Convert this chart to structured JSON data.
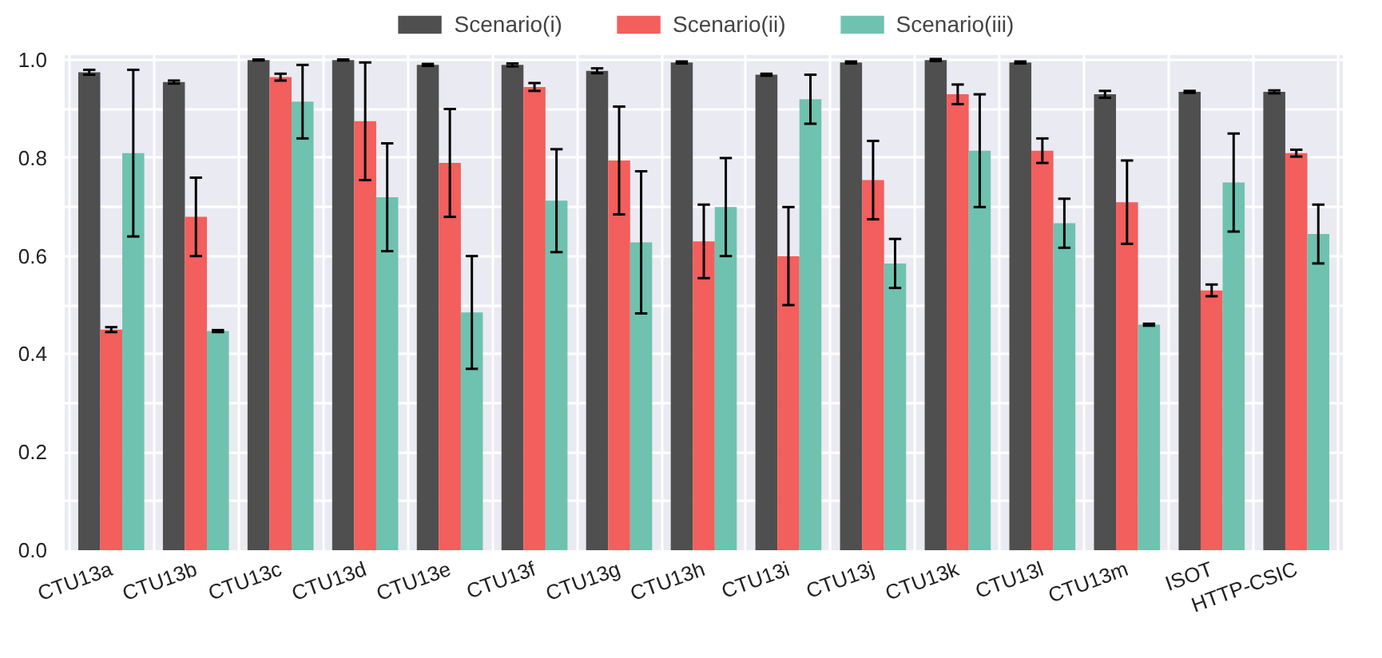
{
  "chart_data": {
    "type": "bar",
    "categories": [
      "CTU13a",
      "CTU13b",
      "CTU13c",
      "CTU13d",
      "CTU13e",
      "CTU13f",
      "CTU13g",
      "CTU13h",
      "CTU13i",
      "CTU13j",
      "CTU13k",
      "CTU13l",
      "CTU13m",
      "ISOT",
      "HTTP-CSIC"
    ],
    "series": [
      {
        "name": "Scenario(i)",
        "color": "#4f4f4f",
        "values": [
          0.975,
          0.955,
          1.0,
          1.0,
          0.99,
          0.99,
          0.978,
          0.995,
          0.97,
          0.995,
          1.0,
          0.995,
          0.93,
          0.935,
          0.935
        ],
        "errors": [
          0.005,
          0.003,
          0.001,
          0.001,
          0.002,
          0.003,
          0.005,
          0.002,
          0.002,
          0.002,
          0.002,
          0.002,
          0.007,
          0.002,
          0.003
        ]
      },
      {
        "name": "Scenario(ii)",
        "color": "#f25f5c",
        "values": [
          0.45,
          0.68,
          0.965,
          0.875,
          0.79,
          0.945,
          0.795,
          0.63,
          0.6,
          0.755,
          0.93,
          0.815,
          0.71,
          0.53,
          0.81
        ],
        "errors": [
          0.005,
          0.08,
          0.007,
          0.12,
          0.11,
          0.008,
          0.11,
          0.075,
          0.1,
          0.08,
          0.02,
          0.025,
          0.085,
          0.012,
          0.007
        ]
      },
      {
        "name": "Scenario(iii)",
        "color": "#6fc2b0",
        "values": [
          0.81,
          0.447,
          0.915,
          0.72,
          0.485,
          0.713,
          0.628,
          0.7,
          0.92,
          0.585,
          0.815,
          0.667,
          0.46,
          0.75,
          0.645
        ],
        "errors": [
          0.17,
          0.002,
          0.075,
          0.11,
          0.115,
          0.105,
          0.145,
          0.1,
          0.05,
          0.05,
          0.115,
          0.05,
          0.002,
          0.1,
          0.06
        ]
      }
    ],
    "ylim": [
      0,
      1.01
    ],
    "yticks": [
      {
        "value": 0,
        "label": "0.0"
      },
      {
        "value": 0.1,
        "label": null
      },
      {
        "value": 0.2,
        "label": "0.2"
      },
      {
        "value": 0.3,
        "label": null
      },
      {
        "value": 0.4,
        "label": "0.4"
      },
      {
        "value": 0.5,
        "label": null
      },
      {
        "value": 0.6,
        "label": "0.6"
      },
      {
        "value": 0.7,
        "label": null
      },
      {
        "value": 0.8,
        "label": "0.8"
      },
      {
        "value": 0.9,
        "label": null
      },
      {
        "value": 1.0,
        "label": "1.0"
      }
    ],
    "grid": true,
    "legend": "top"
  }
}
